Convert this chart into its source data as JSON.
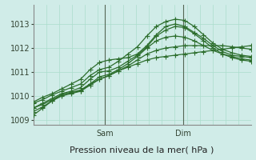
{
  "bg_color": "#d0ece8",
  "grid_color": "#aaddcc",
  "line_color": "#2d6e2d",
  "xlabel": "Pression niveau de la mer( hPa )",
  "xlabel_fontsize": 8,
  "ylabel_fontsize": 7,
  "tick_fontsize": 7,
  "ylim": [
    1008.8,
    1013.8
  ],
  "yticks": [
    1009,
    1010,
    1011,
    1012,
    1013
  ],
  "day_labels": [
    "Sam",
    "Dim"
  ],
  "day_positions": [
    0.33,
    0.69
  ],
  "vline_color": "#556655",
  "n_vgrid": 18,
  "series": [
    [
      1009.2,
      1009.5,
      1009.8,
      1010.05,
      1010.15,
      1010.2,
      1010.5,
      1010.7,
      1010.85,
      1011.05,
      1011.2,
      1011.35,
      1011.5,
      1011.6,
      1011.65,
      1011.7,
      1011.75,
      1011.8,
      1011.85,
      1011.9,
      1011.95,
      1012.0,
      1012.05,
      1012.1
    ],
    [
      1009.35,
      1009.55,
      1009.8,
      1010.0,
      1010.1,
      1010.2,
      1010.45,
      1010.7,
      1010.85,
      1011.05,
      1011.25,
      1011.5,
      1011.75,
      1011.9,
      1012.0,
      1012.05,
      1012.1,
      1012.1,
      1012.1,
      1012.1,
      1012.1,
      1012.05,
      1012.0,
      1011.95
    ],
    [
      1009.5,
      1009.65,
      1009.85,
      1010.05,
      1010.15,
      1010.25,
      1010.5,
      1010.8,
      1010.9,
      1011.1,
      1011.35,
      1011.65,
      1012.0,
      1012.3,
      1012.45,
      1012.5,
      1012.45,
      1012.3,
      1012.1,
      1011.9,
      1011.75,
      1011.65,
      1011.55,
      1011.5
    ],
    [
      1009.5,
      1009.7,
      1009.9,
      1010.1,
      1010.2,
      1010.35,
      1010.7,
      1011.0,
      1011.05,
      1011.2,
      1011.45,
      1011.7,
      1012.05,
      1012.5,
      1012.75,
      1012.9,
      1012.85,
      1012.6,
      1012.3,
      1012.0,
      1011.75,
      1011.6,
      1011.5,
      1011.45
    ],
    [
      1009.7,
      1009.85,
      1010.05,
      1010.2,
      1010.35,
      1010.5,
      1010.85,
      1011.1,
      1011.2,
      1011.45,
      1011.75,
      1012.05,
      1012.5,
      1012.9,
      1013.1,
      1013.2,
      1013.15,
      1012.9,
      1012.55,
      1012.2,
      1011.95,
      1011.8,
      1011.7,
      1011.65
    ],
    [
      1009.75,
      1009.95,
      1010.1,
      1010.3,
      1010.5,
      1010.7,
      1011.1,
      1011.4,
      1011.5,
      1011.55,
      1011.6,
      1011.75,
      1012.1,
      1012.55,
      1012.9,
      1013.0,
      1012.9,
      1012.65,
      1012.4,
      1012.1,
      1011.85,
      1011.7,
      1011.65,
      1011.6
    ]
  ],
  "marker": "+",
  "markersize": 4,
  "linewidth": 0.9
}
